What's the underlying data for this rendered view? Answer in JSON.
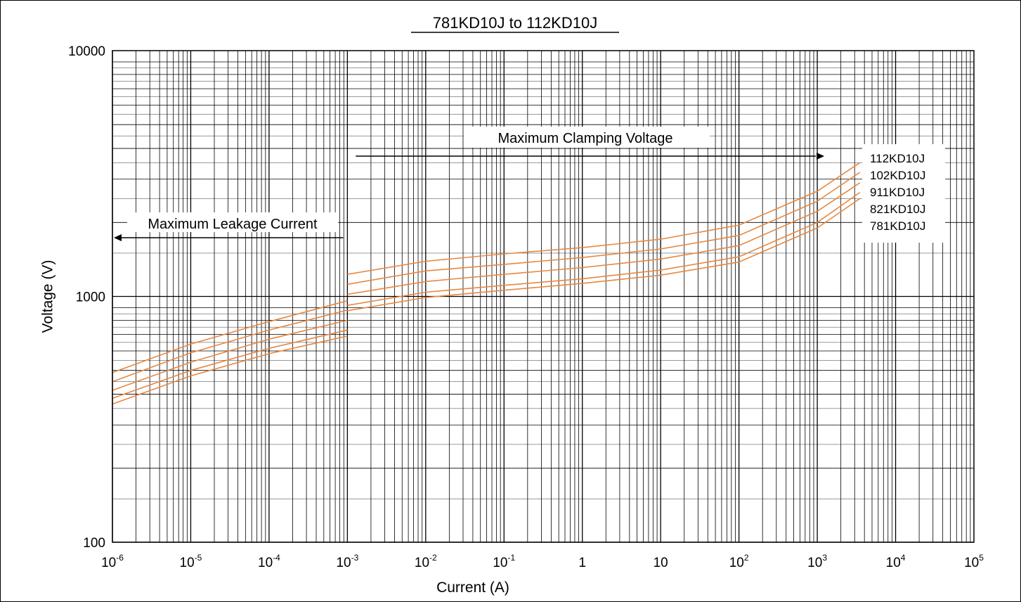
{
  "chart_data": {
    "type": "line",
    "title": "781KD10J to 112KD10J",
    "xlabel": "Current (A)",
    "ylabel": "Voltage (V)",
    "x_scale": "log",
    "y_scale": "log",
    "xlim": [
      1e-06,
      100000
    ],
    "ylim": [
      100,
      10000
    ],
    "grid": true,
    "x_ticks": [
      {
        "base": "10",
        "exp": "-6",
        "value": 1e-06
      },
      {
        "base": "10",
        "exp": "-5",
        "value": 1e-05
      },
      {
        "base": "10",
        "exp": "-4",
        "value": 0.0001
      },
      {
        "base": "10",
        "exp": "-3",
        "value": 0.001
      },
      {
        "base": "10",
        "exp": "-2",
        "value": 0.01
      },
      {
        "base": "10",
        "exp": "-1",
        "value": 0.1
      },
      {
        "base": "1",
        "exp": "",
        "value": 1
      },
      {
        "base": "10",
        "exp": "",
        "value": 10
      },
      {
        "base": "10",
        "exp": "2",
        "value": 100
      },
      {
        "base": "10",
        "exp": "3",
        "value": 1000
      },
      {
        "base": "10",
        "exp": "4",
        "value": 10000
      },
      {
        "base": "10",
        "exp": "5",
        "value": 100000
      }
    ],
    "y_ticks": [
      {
        "label": "100",
        "value": 100
      },
      {
        "label": "1000",
        "value": 1000
      },
      {
        "label": "10000",
        "value": 10000
      }
    ],
    "line_color": "#e8873f",
    "annotations": [
      {
        "text": "Maximum Leakage Current",
        "direction": "left",
        "x_from": 0.001,
        "x_to": 1e-06
      },
      {
        "text": "Maximum Clamping Voltage",
        "direction": "right",
        "x_from": 0.001,
        "x_to": 1000
      }
    ],
    "legend_placement": "right",
    "series": [
      {
        "name": "112KD10J",
        "leakage": {
          "x": [
            1e-06,
            1e-05,
            0.0001,
            0.001
          ],
          "y": [
            490,
            640,
            790,
            960
          ]
        },
        "clamping": {
          "x": [
            0.001,
            0.01,
            0.1,
            1,
            10,
            100,
            1000,
            3500
          ],
          "y": [
            1230,
            1390,
            1490,
            1580,
            1710,
            1950,
            2680,
            3500
          ]
        }
      },
      {
        "name": "102KD10J",
        "leakage": {
          "x": [
            1e-06,
            1e-05,
            0.0001,
            0.001
          ],
          "y": [
            450,
            590,
            730,
            880
          ]
        },
        "clamping": {
          "x": [
            0.001,
            0.01,
            0.1,
            1,
            10,
            100,
            1000,
            3500
          ],
          "y": [
            1120,
            1270,
            1350,
            1440,
            1560,
            1770,
            2440,
            3200
          ]
        }
      },
      {
        "name": "911KD10J",
        "leakage": {
          "x": [
            1e-06,
            1e-05,
            0.0001,
            0.001
          ],
          "y": [
            415,
            540,
            670,
            800
          ]
        },
        "clamping": {
          "x": [
            0.001,
            0.01,
            0.1,
            1,
            10,
            100,
            1000,
            3500
          ],
          "y": [
            1020,
            1150,
            1230,
            1310,
            1420,
            1610,
            2220,
            2900
          ]
        }
      },
      {
        "name": "821KD10J",
        "leakage": {
          "x": [
            1e-06,
            1e-05,
            0.0001,
            0.001
          ],
          "y": [
            385,
            500,
            615,
            730
          ]
        },
        "clamping": {
          "x": [
            0.001,
            0.01,
            0.1,
            1,
            10,
            100,
            1000,
            3500
          ],
          "y": [
            920,
            1040,
            1110,
            1180,
            1280,
            1450,
            2000,
            2650
          ]
        }
      },
      {
        "name": "781KD10J",
        "leakage": {
          "x": [
            1e-06,
            1e-05,
            0.0001,
            0.001
          ],
          "y": [
            365,
            475,
            585,
            690
          ]
        },
        "clamping": {
          "x": [
            0.001,
            0.01,
            0.1,
            1,
            10,
            100,
            1000,
            3500
          ],
          "y": [
            875,
            990,
            1060,
            1130,
            1220,
            1380,
            1900,
            2500
          ]
        }
      }
    ]
  }
}
